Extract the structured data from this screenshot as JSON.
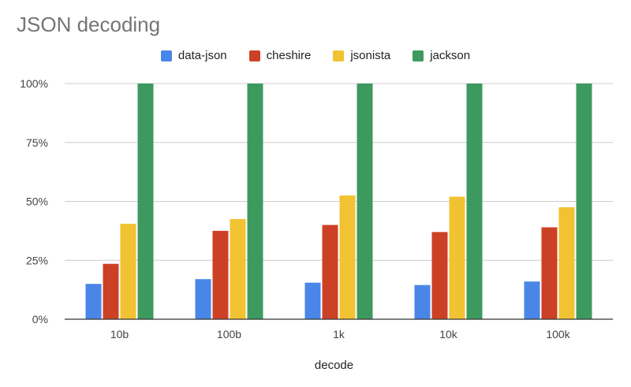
{
  "chart_data": {
    "type": "bar",
    "title": "JSON decoding",
    "xlabel": "decode",
    "ylabel": "",
    "categories": [
      "10b",
      "100b",
      "1k",
      "10k",
      "100k"
    ],
    "ylim": [
      0,
      100
    ],
    "yticks": [
      "0%",
      "25%",
      "50%",
      "75%",
      "100%"
    ],
    "ytick_values": [
      0,
      25,
      50,
      75,
      100
    ],
    "legend_position": "top-center",
    "grid": true,
    "series": [
      {
        "name": "data-json",
        "color": "#4a86e8",
        "values": [
          15,
          17,
          15.5,
          14.5,
          16
        ]
      },
      {
        "name": "cheshire",
        "color": "#cc4125",
        "values": [
          23.5,
          37.5,
          40,
          37,
          39
        ]
      },
      {
        "name": "jsonista",
        "color": "#f1c232",
        "values": [
          40.5,
          42.5,
          52.5,
          52,
          47.5
        ]
      },
      {
        "name": "jackson",
        "color": "#3d9a5f",
        "values": [
          100,
          100,
          100,
          100,
          100
        ]
      }
    ]
  }
}
